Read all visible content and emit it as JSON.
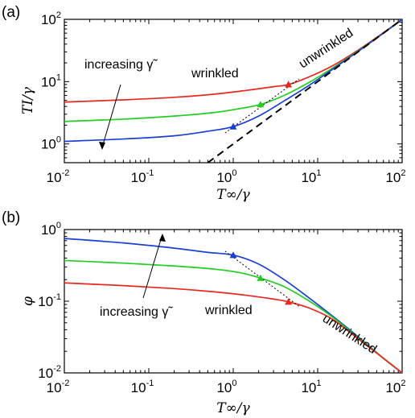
{
  "chart_data": [
    {
      "panel_label": "(a)",
      "type": "line",
      "xscale": "log",
      "yscale": "log",
      "xlim": [
        0.01,
        100
      ],
      "ylim": [
        0.5,
        100
      ],
      "xlabel": "T∞/γ",
      "ylabel": "TI/γ",
      "x_ticks": [
        {
          "base": "10",
          "exp": "-2"
        },
        {
          "base": "10",
          "exp": "-1"
        },
        {
          "base": "10",
          "exp": "0"
        },
        {
          "base": "10",
          "exp": "1"
        },
        {
          "base": "10",
          "exp": "2"
        }
      ],
      "y_ticks": [
        {
          "base": "10",
          "exp": "0"
        },
        {
          "base": "10",
          "exp": "1"
        },
        {
          "base": "10",
          "exp": "2"
        }
      ],
      "annotations": {
        "increasing": "increasing γ̃",
        "wrinkled": "wrinkled",
        "unwrinkled": "unwrinkled"
      },
      "series": [
        {
          "color": "#e8281e",
          "x": [
            0.01,
            0.05,
            0.2,
            0.6,
            1.5,
            3,
            4.5,
            8,
            15,
            30,
            60,
            100
          ],
          "y": [
            4.7,
            5.1,
            5.6,
            6.3,
            7.3,
            8.3,
            9.0,
            12.0,
            18.0,
            32.0,
            61.0,
            100
          ]
        },
        {
          "color": "#22cc22",
          "x": [
            0.01,
            0.05,
            0.2,
            0.6,
            1.2,
            2.1,
            4,
            8,
            15,
            30,
            60,
            100
          ],
          "y": [
            2.3,
            2.5,
            2.8,
            3.2,
            3.7,
            4.3,
            6.0,
            9.8,
            16.5,
            31.0,
            60.0,
            100
          ]
        },
        {
          "color": "#1a3fd6",
          "x": [
            0.01,
            0.05,
            0.2,
            0.5,
            1,
            2,
            4,
            8,
            15,
            30,
            60,
            100
          ],
          "y": [
            1.1,
            1.2,
            1.35,
            1.6,
            1.9,
            2.8,
            4.9,
            8.8,
            15.8,
            30.5,
            60.0,
            100
          ]
        },
        {
          "color": "#000000",
          "dashed": true,
          "x": [
            0.5,
            100
          ],
          "y": [
            0.5,
            100
          ]
        },
        {
          "color": "#000000",
          "dotted": true,
          "x": [
            0.8,
            6
          ],
          "y": [
            1.5,
            11
          ]
        }
      ],
      "markers": [
        {
          "color": "#1a3fd6",
          "x": 1.0,
          "y": 1.9
        },
        {
          "color": "#22cc22",
          "x": 2.1,
          "y": 4.3
        },
        {
          "color": "#e8281e",
          "x": 4.5,
          "y": 9.0
        }
      ]
    },
    {
      "panel_label": "(b)",
      "type": "line",
      "xscale": "log",
      "yscale": "log",
      "xlim": [
        0.01,
        100
      ],
      "ylim": [
        0.01,
        1
      ],
      "xlabel": "T∞/γ",
      "ylabel": "φ",
      "x_ticks": [
        {
          "base": "10",
          "exp": "-2"
        },
        {
          "base": "10",
          "exp": "-1"
        },
        {
          "base": "10",
          "exp": "0"
        },
        {
          "base": "10",
          "exp": "1"
        },
        {
          "base": "10",
          "exp": "2"
        }
      ],
      "y_ticks": [
        {
          "base": "10",
          "exp": "-2"
        },
        {
          "base": "10",
          "exp": "-1"
        },
        {
          "base": "10",
          "exp": "0"
        }
      ],
      "annotations": {
        "increasing": "increasing γ̃",
        "wrinkled": "wrinkled",
        "unwrinkled": "unwrinkled"
      },
      "series": [
        {
          "color": "#1a3fd6",
          "x": [
            0.01,
            0.05,
            0.2,
            0.5,
            1,
            2,
            4,
            8,
            15,
            30,
            60,
            100
          ],
          "y": [
            0.75,
            0.65,
            0.55,
            0.48,
            0.44,
            0.33,
            0.2,
            0.11,
            0.062,
            0.032,
            0.016,
            0.01
          ]
        },
        {
          "color": "#22cc22",
          "x": [
            0.01,
            0.05,
            0.2,
            0.6,
            1.2,
            2.1,
            4,
            8,
            15,
            30,
            60,
            100
          ],
          "y": [
            0.37,
            0.34,
            0.31,
            0.28,
            0.25,
            0.21,
            0.16,
            0.1,
            0.06,
            0.031,
            0.016,
            0.01
          ]
        },
        {
          "color": "#e8281e",
          "x": [
            0.01,
            0.05,
            0.2,
            0.6,
            1.5,
            3,
            4.5,
            8,
            15,
            30,
            60,
            100
          ],
          "y": [
            0.18,
            0.165,
            0.15,
            0.135,
            0.12,
            0.107,
            0.098,
            0.08,
            0.056,
            0.03,
            0.016,
            0.01
          ]
        },
        {
          "color": "#000000",
          "dotted": true,
          "x": [
            0.8,
            6
          ],
          "y": [
            0.5,
            0.085
          ]
        }
      ],
      "markers": [
        {
          "color": "#1a3fd6",
          "x": 1.0,
          "y": 0.44
        },
        {
          "color": "#22cc22",
          "x": 2.1,
          "y": 0.21
        },
        {
          "color": "#e8281e",
          "x": 4.5,
          "y": 0.098
        }
      ]
    }
  ]
}
